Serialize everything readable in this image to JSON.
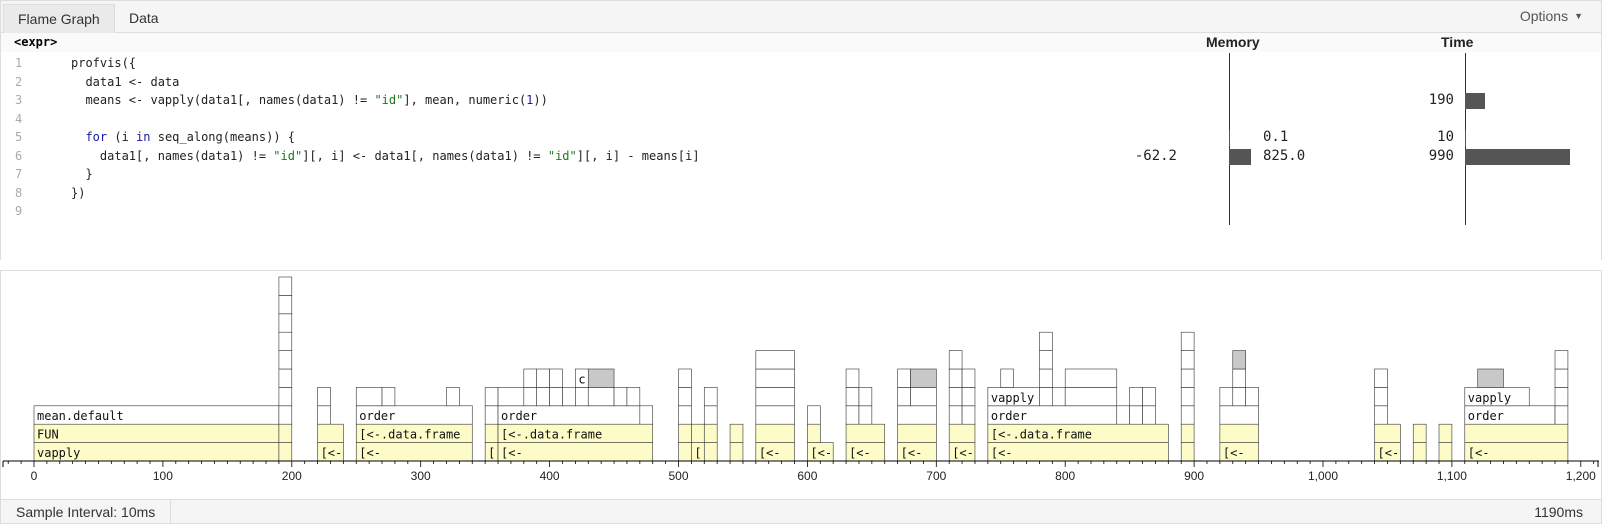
{
  "tabs": [
    {
      "label": "Flame Graph",
      "active": true
    },
    {
      "label": "Data",
      "active": false
    }
  ],
  "options_label": "Options",
  "code": {
    "expr_label": "<expr>",
    "memory_header": "Memory",
    "time_header": "Time",
    "lines": [
      {
        "num": "1",
        "text": "profvis({",
        "mem_neg": "",
        "mem_pos": "",
        "time": ""
      },
      {
        "num": "2",
        "text": "  data1 <- data",
        "mem_neg": "",
        "mem_pos": "",
        "time": ""
      },
      {
        "num": "3",
        "text": "  means <- vapply(data1[, names(data1) != \"id\"], mean, numeric(1))",
        "mem_neg": "",
        "mem_pos": "",
        "time": "190"
      },
      {
        "num": "4",
        "text": "",
        "mem_neg": "",
        "mem_pos": "",
        "time": ""
      },
      {
        "num": "5",
        "text": "  for (i in seq_along(means)) {",
        "mem_neg": "",
        "mem_pos": "0.1",
        "time": "10"
      },
      {
        "num": "6",
        "text": "    data1[, names(data1) != \"id\"][, i] <- data1[, names(data1) != \"id\"][, i] - means[i]",
        "mem_neg": "-62.2",
        "mem_pos": "825.0",
        "time": "990"
      },
      {
        "num": "7",
        "text": "  }",
        "mem_neg": "",
        "mem_pos": "",
        "time": ""
      },
      {
        "num": "8",
        "text": "})",
        "mem_neg": "",
        "mem_pos": "",
        "time": ""
      },
      {
        "num": "9",
        "text": "",
        "mem_neg": "",
        "mem_pos": "",
        "time": ""
      }
    ]
  },
  "flame": {
    "x_ticks": [
      "0",
      "100",
      "200",
      "300",
      "400",
      "500",
      "600",
      "700",
      "800",
      "900",
      "1,000",
      "1,100",
      "1,200"
    ],
    "cells": [
      {
        "label": "vapply",
        "x0": 0,
        "x1": 190,
        "depth": 0
      },
      {
        "label": "FUN",
        "x0": 0,
        "x1": 190,
        "depth": 1
      },
      {
        "label": "mean.default",
        "x0": 0,
        "x1": 190,
        "depth": 2
      },
      {
        "label": "",
        "x0": 190,
        "x1": 200,
        "depth": 0
      },
      {
        "label": "",
        "x0": 190,
        "x1": 200,
        "depth": 1
      },
      {
        "label": "",
        "x0": 190,
        "x1": 200,
        "depth": 2
      },
      {
        "label": "",
        "x0": 190,
        "x1": 200,
        "depth": 3
      },
      {
        "label": "",
        "x0": 190,
        "x1": 200,
        "depth": 4
      },
      {
        "label": "",
        "x0": 190,
        "x1": 200,
        "depth": 5
      },
      {
        "label": "",
        "x0": 190,
        "x1": 200,
        "depth": 6
      },
      {
        "label": "",
        "x0": 190,
        "x1": 200,
        "depth": 7
      },
      {
        "label": "",
        "x0": 190,
        "x1": 200,
        "depth": 8
      },
      {
        "label": "",
        "x0": 190,
        "x1": 200,
        "depth": 9
      },
      {
        "label": "[<-",
        "x0": 220,
        "x1": 240,
        "depth": 0
      },
      {
        "label": "",
        "x0": 220,
        "x1": 240,
        "depth": 1
      },
      {
        "label": "",
        "x0": 220,
        "x1": 230,
        "depth": 2
      },
      {
        "label": "",
        "x0": 220,
        "x1": 230,
        "depth": 3
      },
      {
        "label": "[<-",
        "x0": 250,
        "x1": 340,
        "depth": 0
      },
      {
        "label": "[<-.data.frame",
        "x0": 250,
        "x1": 340,
        "depth": 1
      },
      {
        "label": "order",
        "x0": 250,
        "x1": 340,
        "depth": 2
      },
      {
        "label": "",
        "x0": 250,
        "x1": 270,
        "depth": 3
      },
      {
        "label": "",
        "x0": 270,
        "x1": 280,
        "depth": 3
      },
      {
        "label": "",
        "x0": 320,
        "x1": 330,
        "depth": 3
      },
      {
        "label": "[",
        "x0": 350,
        "x1": 360,
        "depth": 0
      },
      {
        "label": "",
        "x0": 350,
        "x1": 360,
        "depth": 1
      },
      {
        "label": "",
        "x0": 350,
        "x1": 360,
        "depth": 2
      },
      {
        "label": "",
        "x0": 350,
        "x1": 360,
        "depth": 3
      },
      {
        "label": "[<-",
        "x0": 360,
        "x1": 480,
        "depth": 0
      },
      {
        "label": "[<-.data.frame",
        "x0": 360,
        "x1": 480,
        "depth": 1
      },
      {
        "label": "order",
        "x0": 360,
        "x1": 480,
        "depth": 2
      },
      {
        "label": "",
        "x0": 360,
        "x1": 380,
        "depth": 3
      },
      {
        "label": "",
        "x0": 380,
        "x1": 390,
        "depth": 3
      },
      {
        "label": "",
        "x0": 380,
        "x1": 390,
        "depth": 4
      },
      {
        "label": "",
        "x0": 390,
        "x1": 400,
        "depth": 3
      },
      {
        "label": "",
        "x0": 390,
        "x1": 400,
        "depth": 4
      },
      {
        "label": "",
        "x0": 400,
        "x1": 410,
        "depth": 3
      },
      {
        "label": "",
        "x0": 400,
        "x1": 410,
        "depth": 4
      },
      {
        "label": "",
        "x0": 410,
        "x1": 420,
        "depth": 3
      },
      {
        "label": "",
        "x0": 420,
        "x1": 430,
        "depth": 3
      },
      {
        "label": "c",
        "x0": 420,
        "x1": 430,
        "depth": 4
      },
      {
        "label": "",
        "x0": 430,
        "x1": 450,
        "depth": 3
      },
      {
        "label": "",
        "x0": 430,
        "x1": 450,
        "depth": 4,
        "gray": true
      },
      {
        "label": "",
        "x0": 450,
        "x1": 460,
        "depth": 3
      },
      {
        "label": "",
        "x0": 460,
        "x1": 470,
        "depth": 3
      },
      {
        "label": "",
        "x0": 470,
        "x1": 480,
        "depth": 2
      },
      {
        "label": "",
        "x0": 500,
        "x1": 510,
        "depth": 0
      },
      {
        "label": "",
        "x0": 500,
        "x1": 510,
        "depth": 1
      },
      {
        "label": "",
        "x0": 500,
        "x1": 510,
        "depth": 2
      },
      {
        "label": "",
        "x0": 500,
        "x1": 510,
        "depth": 3
      },
      {
        "label": "",
        "x0": 500,
        "x1": 510,
        "depth": 4
      },
      {
        "label": "[",
        "x0": 510,
        "x1": 520,
        "depth": 0
      },
      {
        "label": "",
        "x0": 510,
        "x1": 520,
        "depth": 1
      },
      {
        "label": "",
        "x0": 520,
        "x1": 530,
        "depth": 0
      },
      {
        "label": "",
        "x0": 520,
        "x1": 530,
        "depth": 1
      },
      {
        "label": "",
        "x0": 520,
        "x1": 530,
        "depth": 2
      },
      {
        "label": "",
        "x0": 520,
        "x1": 530,
        "depth": 3
      },
      {
        "label": "",
        "x0": 540,
        "x1": 550,
        "depth": 0
      },
      {
        "label": "",
        "x0": 540,
        "x1": 550,
        "depth": 1
      },
      {
        "label": "[<-",
        "x0": 560,
        "x1": 590,
        "depth": 0
      },
      {
        "label": "",
        "x0": 560,
        "x1": 590,
        "depth": 1
      },
      {
        "label": "",
        "x0": 560,
        "x1": 590,
        "depth": 2
      },
      {
        "label": "",
        "x0": 560,
        "x1": 590,
        "depth": 3
      },
      {
        "label": "",
        "x0": 560,
        "x1": 590,
        "depth": 4
      },
      {
        "label": "",
        "x0": 560,
        "x1": 590,
        "depth": 5
      },
      {
        "label": "[<-",
        "x0": 600,
        "x1": 620,
        "depth": 0
      },
      {
        "label": "",
        "x0": 600,
        "x1": 610,
        "depth": 1
      },
      {
        "label": "",
        "x0": 600,
        "x1": 610,
        "depth": 2
      },
      {
        "label": "[<-",
        "x0": 630,
        "x1": 660,
        "depth": 0
      },
      {
        "label": "",
        "x0": 630,
        "x1": 660,
        "depth": 1
      },
      {
        "label": "",
        "x0": 630,
        "x1": 640,
        "depth": 2
      },
      {
        "label": "",
        "x0": 630,
        "x1": 640,
        "depth": 3
      },
      {
        "label": "",
        "x0": 630,
        "x1": 640,
        "depth": 4
      },
      {
        "label": "",
        "x0": 640,
        "x1": 650,
        "depth": 2
      },
      {
        "label": "",
        "x0": 640,
        "x1": 650,
        "depth": 3
      },
      {
        "label": "[<-",
        "x0": 670,
        "x1": 700,
        "depth": 0
      },
      {
        "label": "",
        "x0": 670,
        "x1": 700,
        "depth": 1
      },
      {
        "label": "",
        "x0": 670,
        "x1": 700,
        "depth": 2
      },
      {
        "label": "",
        "x0": 670,
        "x1": 680,
        "depth": 3
      },
      {
        "label": "",
        "x0": 670,
        "x1": 680,
        "depth": 4
      },
      {
        "label": "",
        "x0": 680,
        "x1": 700,
        "depth": 3
      },
      {
        "label": "",
        "x0": 680,
        "x1": 700,
        "depth": 4,
        "gray": true
      },
      {
        "label": "[<-",
        "x0": 710,
        "x1": 730,
        "depth": 0
      },
      {
        "label": "",
        "x0": 710,
        "x1": 730,
        "depth": 1
      },
      {
        "label": "",
        "x0": 710,
        "x1": 720,
        "depth": 2
      },
      {
        "label": "",
        "x0": 710,
        "x1": 720,
        "depth": 3
      },
      {
        "label": "",
        "x0": 710,
        "x1": 720,
        "depth": 4
      },
      {
        "label": "",
        "x0": 710,
        "x1": 720,
        "depth": 5
      },
      {
        "label": "",
        "x0": 720,
        "x1": 730,
        "depth": 2
      },
      {
        "label": "",
        "x0": 720,
        "x1": 730,
        "depth": 3
      },
      {
        "label": "",
        "x0": 720,
        "x1": 730,
        "depth": 4
      },
      {
        "label": "[<-",
        "x0": 740,
        "x1": 880,
        "depth": 0
      },
      {
        "label": "[<-.data.frame",
        "x0": 740,
        "x1": 880,
        "depth": 1
      },
      {
        "label": "order",
        "x0": 740,
        "x1": 840,
        "depth": 2
      },
      {
        "label": "vapply",
        "x0": 740,
        "x1": 780,
        "depth": 3
      },
      {
        "label": "",
        "x0": 750,
        "x1": 760,
        "depth": 4
      },
      {
        "label": "",
        "x0": 780,
        "x1": 790,
        "depth": 3
      },
      {
        "label": "",
        "x0": 780,
        "x1": 790,
        "depth": 4
      },
      {
        "label": "",
        "x0": 780,
        "x1": 790,
        "depth": 5
      },
      {
        "label": "",
        "x0": 780,
        "x1": 790,
        "depth": 6
      },
      {
        "label": "",
        "x0": 790,
        "x1": 800,
        "depth": 3
      },
      {
        "label": "",
        "x0": 800,
        "x1": 840,
        "depth": 3
      },
      {
        "label": "",
        "x0": 800,
        "x1": 840,
        "depth": 4
      },
      {
        "label": "",
        "x0": 840,
        "x1": 850,
        "depth": 2
      },
      {
        "label": "",
        "x0": 850,
        "x1": 860,
        "depth": 2
      },
      {
        "label": "",
        "x0": 850,
        "x1": 860,
        "depth": 3
      },
      {
        "label": "",
        "x0": 860,
        "x1": 870,
        "depth": 2
      },
      {
        "label": "",
        "x0": 860,
        "x1": 870,
        "depth": 3
      },
      {
        "label": "",
        "x0": 890,
        "x1": 900,
        "depth": 0
      },
      {
        "label": "",
        "x0": 890,
        "x1": 900,
        "depth": 1
      },
      {
        "label": "",
        "x0": 890,
        "x1": 900,
        "depth": 2
      },
      {
        "label": "",
        "x0": 890,
        "x1": 900,
        "depth": 3
      },
      {
        "label": "",
        "x0": 890,
        "x1": 900,
        "depth": 4
      },
      {
        "label": "",
        "x0": 890,
        "x1": 900,
        "depth": 5
      },
      {
        "label": "",
        "x0": 890,
        "x1": 900,
        "depth": 6
      },
      {
        "label": "[<-",
        "x0": 920,
        "x1": 950,
        "depth": 0
      },
      {
        "label": "",
        "x0": 920,
        "x1": 950,
        "depth": 1
      },
      {
        "label": "",
        "x0": 920,
        "x1": 950,
        "depth": 2
      },
      {
        "label": "",
        "x0": 920,
        "x1": 930,
        "depth": 3
      },
      {
        "label": "",
        "x0": 930,
        "x1": 940,
        "depth": 3
      },
      {
        "label": "",
        "x0": 930,
        "x1": 940,
        "depth": 4
      },
      {
        "label": "",
        "x0": 930,
        "x1": 940,
        "depth": 5,
        "gray": true
      },
      {
        "label": "",
        "x0": 940,
        "x1": 950,
        "depth": 3
      },
      {
        "label": "[<-",
        "x0": 1040,
        "x1": 1060,
        "depth": 0
      },
      {
        "label": "",
        "x0": 1040,
        "x1": 1060,
        "depth": 1
      },
      {
        "label": "",
        "x0": 1040,
        "x1": 1050,
        "depth": 2
      },
      {
        "label": "",
        "x0": 1040,
        "x1": 1050,
        "depth": 3
      },
      {
        "label": "",
        "x0": 1040,
        "x1": 1050,
        "depth": 4
      },
      {
        "label": "",
        "x0": 1070,
        "x1": 1080,
        "depth": 0
      },
      {
        "label": "",
        "x0": 1070,
        "x1": 1080,
        "depth": 1
      },
      {
        "label": "",
        "x0": 1090,
        "x1": 1100,
        "depth": 0
      },
      {
        "label": "",
        "x0": 1090,
        "x1": 1100,
        "depth": 1
      },
      {
        "label": "[<-",
        "x0": 1110,
        "x1": 1190,
        "depth": 0
      },
      {
        "label": "",
        "x0": 1110,
        "x1": 1190,
        "depth": 1
      },
      {
        "label": "order",
        "x0": 1110,
        "x1": 1180,
        "depth": 2
      },
      {
        "label": "vapply",
        "x0": 1110,
        "x1": 1160,
        "depth": 3
      },
      {
        "label": "",
        "x0": 1120,
        "x1": 1140,
        "depth": 4,
        "gray": true
      },
      {
        "label": "",
        "x0": 1180,
        "x1": 1190,
        "depth": 2
      },
      {
        "label": "",
        "x0": 1180,
        "x1": 1190,
        "depth": 3
      },
      {
        "label": "",
        "x0": 1180,
        "x1": 1190,
        "depth": 4
      },
      {
        "label": "",
        "x0": 1180,
        "x1": 1190,
        "depth": 5
      }
    ]
  },
  "footer": {
    "interval": "Sample Interval: 10ms",
    "total": "1190ms"
  },
  "colors": {
    "yellow": "#fdfcc8",
    "gray": "#c8c8c8",
    "bar": "#555555"
  }
}
